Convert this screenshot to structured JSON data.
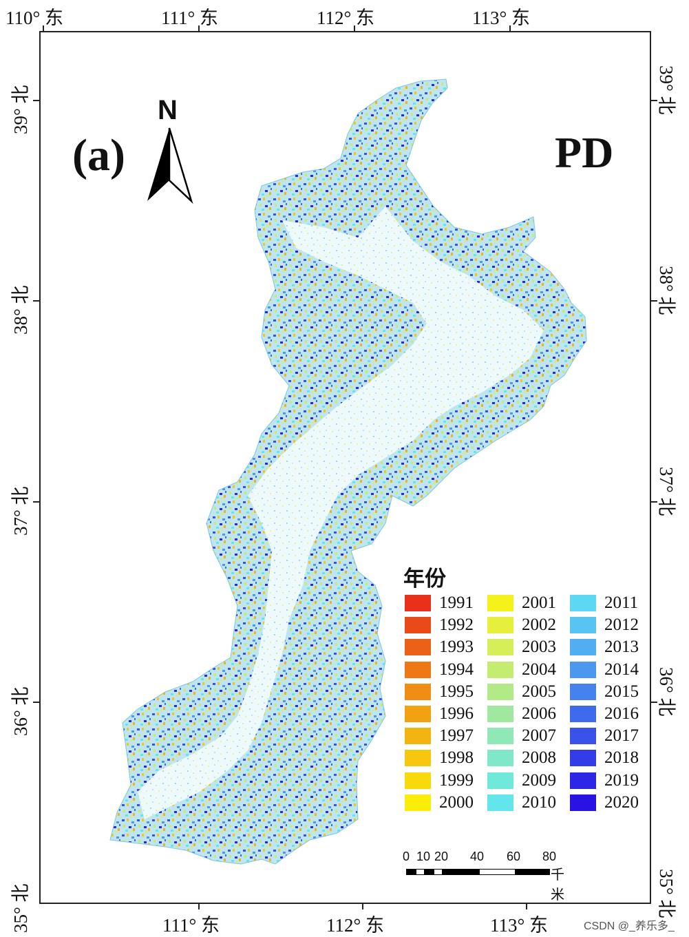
{
  "panel_label": "(a)",
  "map_title": "PD",
  "north_arrow": {
    "label": "N"
  },
  "axes": {
    "top_lon": [
      "110° 东",
      "111° 东",
      "112° 东",
      "113° 东"
    ],
    "bottom_lon": [
      "111° 东",
      "112° 东",
      "113° 东"
    ],
    "left_lat": [
      "39° 北",
      "38° 北",
      "37° 北",
      "36° 北",
      "35° 北"
    ],
    "right_lat": [
      "39° 北",
      "38° 北",
      "37° 北",
      "36° 北",
      "35° 北"
    ]
  },
  "legend": {
    "title": "年份",
    "items": [
      {
        "label": "1991",
        "color": "#e8301a"
      },
      {
        "label": "1992",
        "color": "#ea4a19"
      },
      {
        "label": "1993",
        "color": "#ec6118"
      },
      {
        "label": "1994",
        "color": "#ee7716"
      },
      {
        "label": "1995",
        "color": "#f08d14"
      },
      {
        "label": "1996",
        "color": "#f2a112"
      },
      {
        "label": "1997",
        "color": "#f4b410"
      },
      {
        "label": "1998",
        "color": "#f6c70e"
      },
      {
        "label": "1999",
        "color": "#f8da0c"
      },
      {
        "label": "2000",
        "color": "#faed0a"
      },
      {
        "label": "2001",
        "color": "#f4f21a"
      },
      {
        "label": "2002",
        "color": "#e6f03c"
      },
      {
        "label": "2003",
        "color": "#d6ee58"
      },
      {
        "label": "2004",
        "color": "#c4ec70"
      },
      {
        "label": "2005",
        "color": "#b2ea88"
      },
      {
        "label": "2006",
        "color": "#a0e8a0"
      },
      {
        "label": "2007",
        "color": "#90e8b6"
      },
      {
        "label": "2008",
        "color": "#80e8c8"
      },
      {
        "label": "2009",
        "color": "#70e8da"
      },
      {
        "label": "2010",
        "color": "#62e6ec"
      },
      {
        "label": "2011",
        "color": "#5cd8f2"
      },
      {
        "label": "2012",
        "color": "#58c4f2"
      },
      {
        "label": "2013",
        "color": "#52aef2"
      },
      {
        "label": "2014",
        "color": "#4c98f0"
      },
      {
        "label": "2015",
        "color": "#4682ee"
      },
      {
        "label": "2016",
        "color": "#406aec"
      },
      {
        "label": "2017",
        "color": "#3a52ea"
      },
      {
        "label": "2018",
        "color": "#343ce8"
      },
      {
        "label": "2019",
        "color": "#2e26e6"
      },
      {
        "label": "2020",
        "color": "#2812e4"
      }
    ]
  },
  "scale_bar": {
    "ticks": [
      "0",
      "10",
      "20",
      "40",
      "60",
      "80"
    ],
    "unit": "千米"
  },
  "watermark": "CSDN @_养乐多_"
}
